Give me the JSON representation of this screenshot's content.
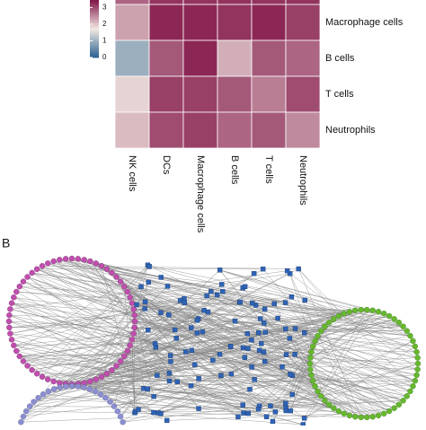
{
  "chart_data": {
    "type": "heatmap",
    "rows": [
      null,
      "Macrophage cells",
      "B cells",
      "T cells",
      "Neutrophils"
    ],
    "columns": [
      "NK cells",
      "DCs",
      "Macrophage cells",
      "B cells",
      "T cells",
      "Neutrophils"
    ],
    "values": [
      [
        2.8,
        3.2,
        3.2,
        3.2,
        3.2,
        3.2
      ],
      [
        2.3,
        3.3,
        3.3,
        3.2,
        3.3,
        3.1
      ],
      [
        1.0,
        2.9,
        3.3,
        2.2,
        2.9,
        2.8
      ],
      [
        1.9,
        3.1,
        3.1,
        2.9,
        2.6,
        3.0
      ],
      [
        2.1,
        3.0,
        3.1,
        2.8,
        2.9,
        2.5
      ]
    ],
    "zlim": [
      0,
      3.45
    ],
    "zticks": [
      0,
      1,
      2,
      3
    ],
    "colorscale": [
      "#265f8e",
      "#f1e9e3",
      "#821548"
    ]
  },
  "panel_label": "B"
}
